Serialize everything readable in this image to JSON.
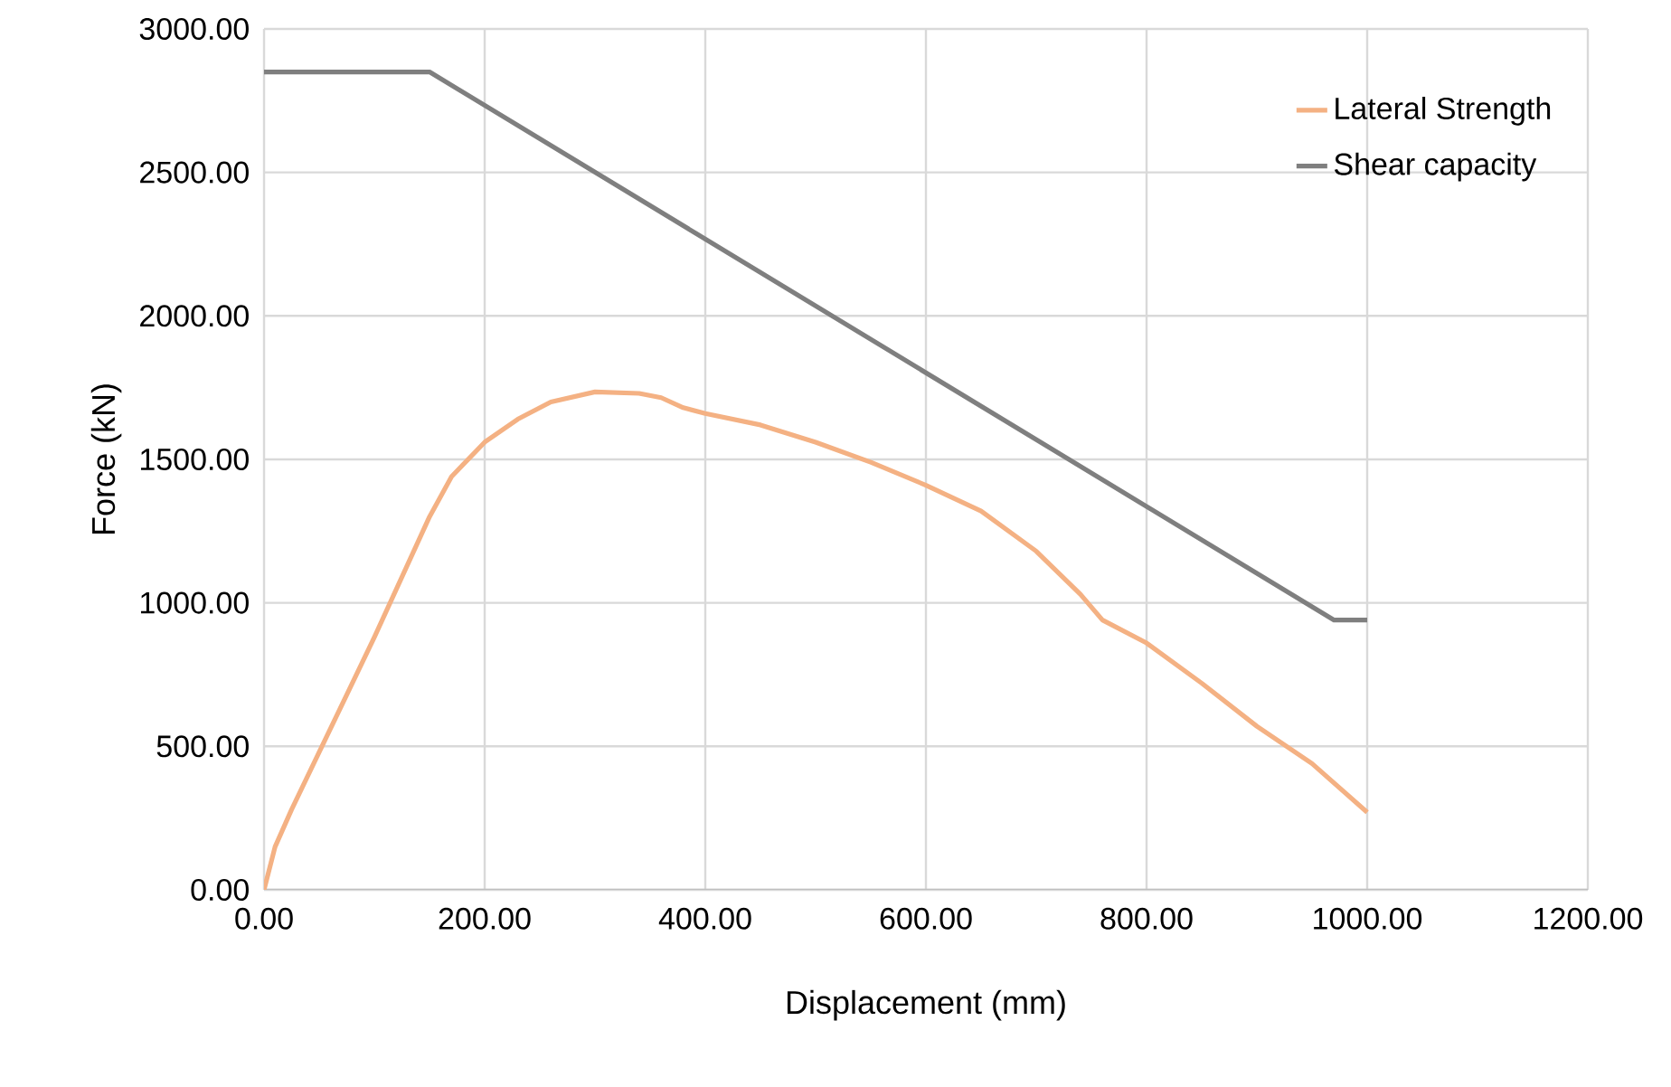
{
  "chart_data": {
    "type": "line",
    "xlabel": "Displacement (mm)",
    "ylabel": "Force (kN)",
    "xlim": [
      0,
      1200
    ],
    "ylim": [
      0,
      3000
    ],
    "xticks": [
      {
        "value": 0,
        "label": "0.00"
      },
      {
        "value": 200,
        "label": "200.00"
      },
      {
        "value": 400,
        "label": "400.00"
      },
      {
        "value": 600,
        "label": "600.00"
      },
      {
        "value": 800,
        "label": "800.00"
      },
      {
        "value": 1000,
        "label": "1000.00"
      },
      {
        "value": 1200,
        "label": "1200.00"
      }
    ],
    "yticks": [
      {
        "value": 0,
        "label": "0.00"
      },
      {
        "value": 500,
        "label": "500.00"
      },
      {
        "value": 1000,
        "label": "1000.00"
      },
      {
        "value": 1500,
        "label": "1500.00"
      },
      {
        "value": 2000,
        "label": "2000.00"
      },
      {
        "value": 2500,
        "label": "2500.00"
      },
      {
        "value": 3000,
        "label": "3000.00"
      }
    ],
    "grid": true,
    "legend": "top right",
    "marker": "none",
    "line_style": "solid",
    "series": [
      {
        "name": "Lateral Strength",
        "color": "#f4b183",
        "x": [
          0,
          10,
          25,
          50,
          100,
          150,
          170,
          200,
          230,
          260,
          300,
          340,
          360,
          380,
          400,
          450,
          500,
          550,
          600,
          650,
          700,
          740,
          760,
          800,
          850,
          900,
          950,
          1000
        ],
        "values": [
          0,
          150,
          280,
          480,
          880,
          1300,
          1440,
          1560,
          1640,
          1700,
          1735,
          1730,
          1715,
          1680,
          1660,
          1620,
          1560,
          1490,
          1410,
          1320,
          1180,
          1030,
          940,
          860,
          720,
          570,
          440,
          270
        ]
      },
      {
        "name": "Shear capacity",
        "color": "#7f7f7f",
        "x": [
          0,
          150,
          970,
          1000
        ],
        "values": [
          2850,
          2850,
          940,
          940
        ]
      }
    ]
  }
}
